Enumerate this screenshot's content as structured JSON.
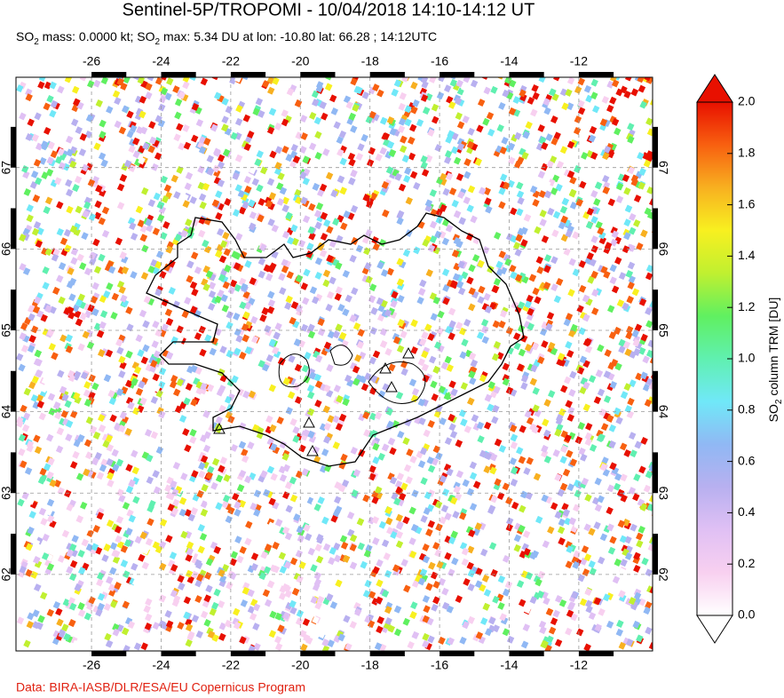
{
  "header": {
    "title": "Sentinel-5P/TROPOMI - 10/04/2018 14:10-14:12 UT",
    "subtitle": [
      "SO",
      "2",
      " mass: 0.0000 kt; SO",
      "2",
      " max: 5.34 DU at lon: -10.80 lat: 66.28 ; 14:12UTC"
    ]
  },
  "map": {
    "xlim": [
      -28.17,
      -9.88
    ],
    "ylim": [
      61.06,
      68.11
    ],
    "xticks": [
      -26,
      -24,
      -22,
      -20,
      -18,
      -16,
      -14,
      -12
    ],
    "yticks": [
      62,
      63,
      64,
      65,
      66,
      67
    ],
    "grid": true
  },
  "colorbar": {
    "label": [
      "SO",
      "2",
      " column TRM [DU]"
    ],
    "lim": [
      0,
      2
    ],
    "ticks": [
      {
        "value": 0,
        "label": "0.0"
      },
      {
        "value": 0.2,
        "label": "0.2"
      },
      {
        "value": 0.4,
        "label": "0.4"
      },
      {
        "value": 0.6,
        "label": "0.6"
      },
      {
        "value": 0.8,
        "label": "0.8"
      },
      {
        "value": 1,
        "label": "1.0"
      },
      {
        "value": 1.2,
        "label": "1.2"
      },
      {
        "value": 1.4,
        "label": "1.4"
      },
      {
        "value": 1.6,
        "label": "1.6"
      },
      {
        "value": 1.8,
        "label": "1.8"
      },
      {
        "value": 2,
        "label": "2.0"
      }
    ],
    "colors": [
      "#ffffff",
      "#f8d0f0",
      "#e0c0f4",
      "#b8b0f0",
      "#90b8f4",
      "#70e8f8",
      "#60f0b0",
      "#60f060",
      "#c0f030",
      "#f8f020",
      "#f8b020",
      "#f86010",
      "#e81000"
    ]
  },
  "footer": "Data: BIRA-IASB/DLR/ESA/EU Copernicus Program"
}
